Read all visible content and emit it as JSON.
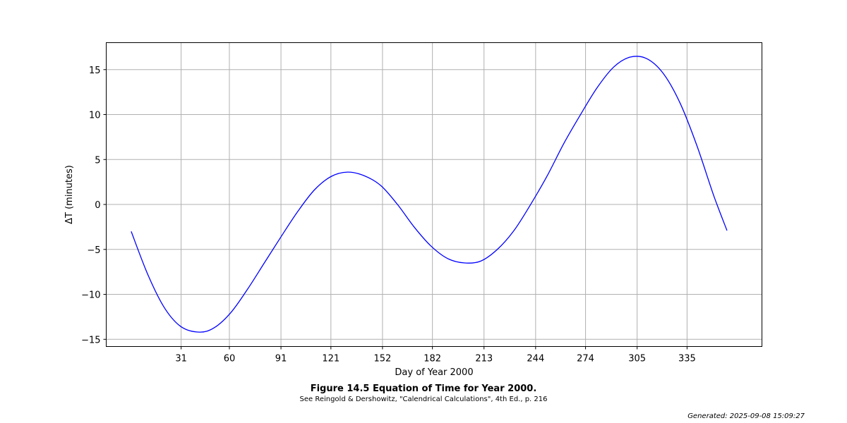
{
  "chart_data": {
    "type": "line",
    "xlabel": "Day of Year 2000",
    "ylabel": "ΔT (minutes)",
    "xlim": [
      -14,
      380
    ],
    "ylim": [
      -15.8,
      18
    ],
    "grid": true,
    "xticks": [
      31,
      60,
      91,
      121,
      152,
      182,
      213,
      244,
      274,
      305,
      335
    ],
    "xtick_labels": [
      "31",
      "60",
      "91",
      "121",
      "152",
      "182",
      "213",
      "244",
      "274",
      "305",
      "335"
    ],
    "yticks": [
      -15,
      -10,
      -5,
      0,
      5,
      10,
      15
    ],
    "ytick_labels": [
      "−15",
      "−10",
      "−5",
      "0",
      "5",
      "10",
      "15"
    ],
    "series": [
      {
        "color": "#0000ff",
        "x": [
          1,
          11,
          21,
          31,
          42,
          51,
          61,
          71,
          81,
          91,
          101,
          111,
          121,
          131,
          141,
          151,
          161,
          171,
          181,
          191,
          201,
          211,
          221,
          231,
          241,
          251,
          261,
          271,
          281,
          291,
          301,
          311,
          321,
          331,
          341,
          351,
          359
        ],
        "y": [
          -3.0,
          -7.8,
          -11.5,
          -13.6,
          -14.2,
          -13.7,
          -12.0,
          -9.4,
          -6.5,
          -3.6,
          -0.8,
          1.6,
          3.1,
          3.6,
          3.2,
          2.1,
          0.0,
          -2.5,
          -4.6,
          -6.0,
          -6.5,
          -6.3,
          -5.0,
          -2.9,
          0.0,
          3.2,
          6.8,
          10.0,
          13.0,
          15.3,
          16.4,
          16.2,
          14.5,
          11.2,
          6.5,
          1.0,
          -2.9
        ]
      }
    ]
  },
  "caption": {
    "title": "Figure 14.5 Equation of Time for Year 2000.",
    "subtitle": "See Reingold & Dershowitz, \"Calendrical Calculations\", 4th Ed., p. 216"
  },
  "generated": "Generated: 2025-09-08 15:09:27"
}
